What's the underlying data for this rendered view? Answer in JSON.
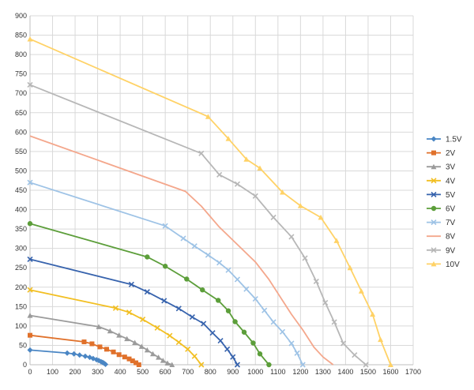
{
  "chart_data": {
    "type": "line",
    "title": "",
    "xlabel": "",
    "ylabel": "",
    "xlim": [
      0,
      1700
    ],
    "ylim": [
      0,
      900
    ],
    "x_ticks": [
      0,
      100,
      200,
      300,
      400,
      500,
      600,
      700,
      800,
      900,
      1000,
      1100,
      1200,
      1300,
      1400,
      1500,
      1600,
      1700
    ],
    "y_ticks": [
      0,
      50,
      100,
      150,
      200,
      250,
      300,
      350,
      400,
      450,
      500,
      550,
      600,
      650,
      700,
      750,
      800,
      850,
      900
    ],
    "grid": true,
    "legend_position": "right",
    "series": [
      {
        "name": "1.5V",
        "color": "#4a86c4",
        "marker": "diamond",
        "points": [
          [
            0,
            38
          ],
          [
            165,
            30
          ],
          [
            195,
            28
          ],
          [
            220,
            25
          ],
          [
            245,
            22
          ],
          [
            265,
            19
          ],
          [
            280,
            16
          ],
          [
            295,
            13
          ],
          [
            305,
            11
          ],
          [
            315,
            8
          ],
          [
            322,
            6
          ],
          [
            328,
            4
          ],
          [
            335,
            1
          ]
        ]
      },
      {
        "name": "2V",
        "color": "#e0712b",
        "marker": "square",
        "points": [
          [
            0,
            76
          ],
          [
            240,
            59
          ],
          [
            275,
            54
          ],
          [
            310,
            46
          ],
          [
            340,
            40
          ],
          [
            370,
            33
          ],
          [
            395,
            26
          ],
          [
            420,
            20
          ],
          [
            440,
            15
          ],
          [
            455,
            10
          ],
          [
            470,
            5
          ],
          [
            483,
            0
          ]
        ]
      },
      {
        "name": "3V",
        "color": "#9b9b9b",
        "marker": "triangle",
        "points": [
          [
            0,
            127
          ],
          [
            305,
            98
          ],
          [
            355,
            87
          ],
          [
            395,
            76
          ],
          [
            430,
            67
          ],
          [
            465,
            57
          ],
          [
            495,
            47
          ],
          [
            520,
            38
          ],
          [
            545,
            28
          ],
          [
            570,
            19
          ],
          [
            590,
            11
          ],
          [
            610,
            4
          ],
          [
            630,
            0
          ]
        ]
      },
      {
        "name": "4V",
        "color": "#f2bf22",
        "marker": "x",
        "points": [
          [
            0,
            193
          ],
          [
            380,
            146
          ],
          [
            440,
            135
          ],
          [
            500,
            117
          ],
          [
            565,
            95
          ],
          [
            620,
            75
          ],
          [
            660,
            58
          ],
          [
            700,
            40
          ],
          [
            730,
            22
          ],
          [
            760,
            0
          ]
        ]
      },
      {
        "name": "5V",
        "color": "#3763ad",
        "marker": "x",
        "points": [
          [
            0,
            272
          ],
          [
            450,
            207
          ],
          [
            520,
            188
          ],
          [
            595,
            165
          ],
          [
            660,
            145
          ],
          [
            720,
            123
          ],
          [
            770,
            106
          ],
          [
            810,
            82
          ],
          [
            845,
            62
          ],
          [
            875,
            40
          ],
          [
            900,
            20
          ],
          [
            920,
            0
          ]
        ]
      },
      {
        "name": "6V",
        "color": "#5c9e3a",
        "marker": "circle",
        "points": [
          [
            0,
            364
          ],
          [
            520,
            278
          ],
          [
            600,
            254
          ],
          [
            695,
            221
          ],
          [
            765,
            193
          ],
          [
            835,
            166
          ],
          [
            880,
            139
          ],
          [
            910,
            111
          ],
          [
            950,
            84
          ],
          [
            990,
            56
          ],
          [
            1020,
            28
          ],
          [
            1060,
            0
          ]
        ]
      },
      {
        "name": "7V",
        "color": "#9ec3e6",
        "marker": "x",
        "points": [
          [
            0,
            470
          ],
          [
            600,
            358
          ],
          [
            680,
            326
          ],
          [
            730,
            306
          ],
          [
            790,
            283
          ],
          [
            840,
            263
          ],
          [
            880,
            244
          ],
          [
            920,
            220
          ],
          [
            960,
            195
          ],
          [
            1000,
            170
          ],
          [
            1040,
            140
          ],
          [
            1080,
            110
          ],
          [
            1120,
            85
          ],
          [
            1160,
            55
          ],
          [
            1185,
            30
          ],
          [
            1210,
            0
          ]
        ]
      },
      {
        "name": "8V",
        "color": "#f4a78c",
        "marker": "none",
        "points": [
          [
            0,
            590
          ],
          [
            690,
            447
          ],
          [
            760,
            409
          ],
          [
            840,
            355
          ],
          [
            920,
            310
          ],
          [
            1000,
            265
          ],
          [
            1060,
            220
          ],
          [
            1110,
            175
          ],
          [
            1160,
            130
          ],
          [
            1210,
            90
          ],
          [
            1260,
            45
          ],
          [
            1300,
            20
          ],
          [
            1345,
            0
          ]
        ]
      },
      {
        "name": "9V",
        "color": "#b7b7b7",
        "marker": "x",
        "points": [
          [
            0,
            722
          ],
          [
            760,
            545
          ],
          [
            840,
            490
          ],
          [
            920,
            466
          ],
          [
            1000,
            435
          ],
          [
            1080,
            380
          ],
          [
            1160,
            330
          ],
          [
            1220,
            275
          ],
          [
            1270,
            215
          ],
          [
            1310,
            160
          ],
          [
            1350,
            110
          ],
          [
            1390,
            55
          ],
          [
            1440,
            25
          ],
          [
            1490,
            0
          ]
        ]
      },
      {
        "name": "10V",
        "color": "#ffd266",
        "marker": "triangle",
        "points": [
          [
            0,
            840
          ],
          [
            790,
            640
          ],
          [
            880,
            583
          ],
          [
            960,
            530
          ],
          [
            1020,
            507
          ],
          [
            1120,
            445
          ],
          [
            1200,
            410
          ],
          [
            1290,
            380
          ],
          [
            1360,
            320
          ],
          [
            1420,
            250
          ],
          [
            1470,
            190
          ],
          [
            1520,
            130
          ],
          [
            1555,
            65
          ],
          [
            1600,
            0
          ]
        ]
      }
    ]
  }
}
